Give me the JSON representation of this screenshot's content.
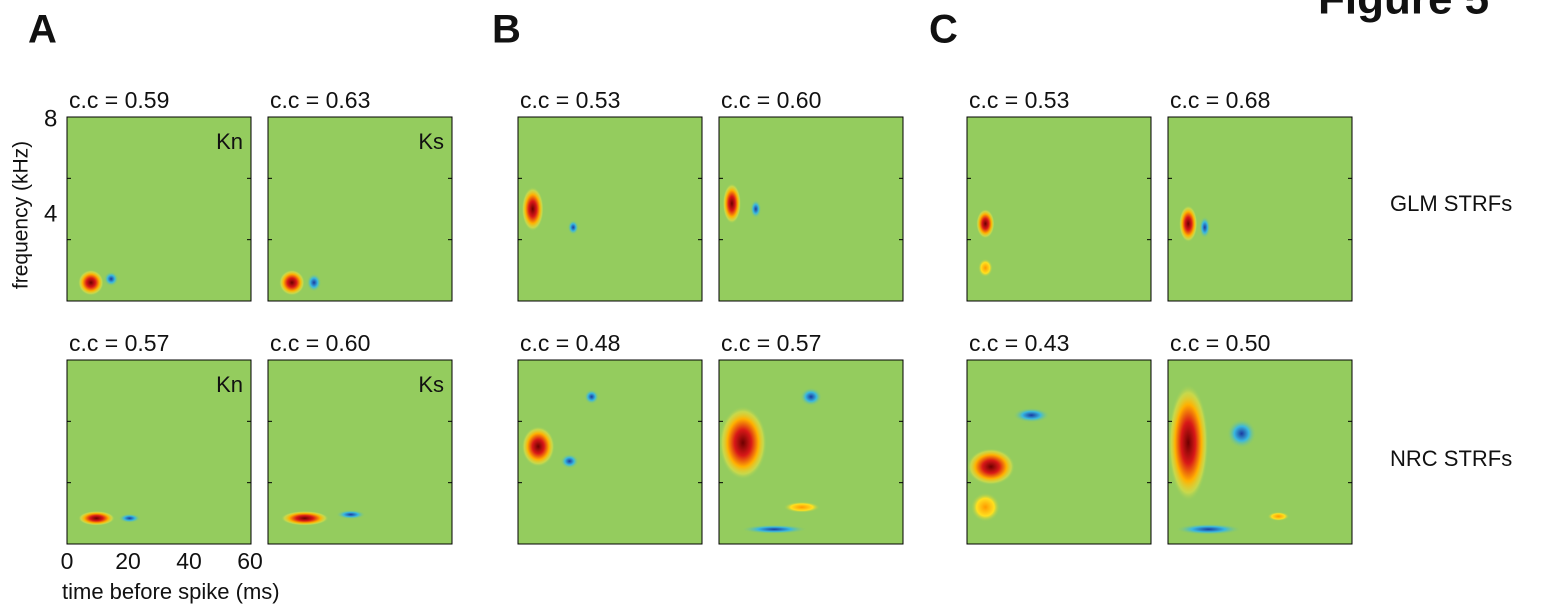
{
  "figure_label": "Figure 5",
  "groups": [
    {
      "label": "A",
      "panels": [
        {
          "cc": "c.c = 0.59",
          "tag": "Kn"
        },
        {
          "cc": "c.c = 0.63",
          "tag": "Ks"
        },
        {
          "cc": "c.c = 0.57",
          "tag": "Kn"
        },
        {
          "cc": "c.c = 0.60",
          "tag": "Ks"
        }
      ]
    },
    {
      "label": "B",
      "panels": [
        {
          "cc": "c.c = 0.53"
        },
        {
          "cc": "c.c = 0.60"
        },
        {
          "cc": "c.c = 0.48"
        },
        {
          "cc": "c.c = 0.57"
        }
      ]
    },
    {
      "label": "C",
      "panels": [
        {
          "cc": "c.c = 0.53"
        },
        {
          "cc": "c.c = 0.68"
        },
        {
          "cc": "c.c = 0.43"
        },
        {
          "cc": "c.c = 0.50"
        }
      ]
    }
  ],
  "y_axis": {
    "label": "frequency (kHz)",
    "ticks": [
      "8",
      "4"
    ]
  },
  "x_axis": {
    "label": "time before spike (ms)",
    "ticks": [
      "0",
      "20",
      "40",
      "60"
    ]
  },
  "row_labels": [
    "GLM STRFs",
    "NRC STRFs"
  ]
}
